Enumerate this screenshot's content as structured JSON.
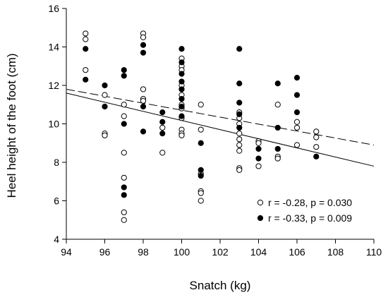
{
  "chart_data": {
    "type": "scatter",
    "title": "",
    "xlabel": "Snatch (kg)",
    "ylabel": "Heel height of the foot (cm)",
    "xlim": [
      94,
      110
    ],
    "ylim": [
      4,
      16
    ],
    "x_ticks": [
      94,
      96,
      98,
      100,
      102,
      104,
      106,
      108,
      110
    ],
    "y_ticks": [
      4,
      6,
      8,
      10,
      12,
      14,
      16
    ],
    "grid": false,
    "legend_position": "bottom-right",
    "series": [
      {
        "name": "r = -0.28,  p = 0.030",
        "marker": "open-circle",
        "line_style": "dashed",
        "regression": {
          "x": [
            94,
            110
          ],
          "y": [
            11.8,
            8.9
          ]
        },
        "points": [
          [
            95,
            14.7
          ],
          [
            95,
            14.4
          ],
          [
            95,
            12.8
          ],
          [
            96,
            11.5
          ],
          [
            96,
            9.5
          ],
          [
            96,
            9.4
          ],
          [
            97,
            11.0
          ],
          [
            97,
            10.4
          ],
          [
            97,
            8.5
          ],
          [
            97,
            7.2
          ],
          [
            97,
            5.4
          ],
          [
            97,
            5.0
          ],
          [
            98,
            14.7
          ],
          [
            98,
            14.5
          ],
          [
            98,
            11.8
          ],
          [
            98,
            11.3
          ],
          [
            98,
            11.2
          ],
          [
            99,
            9.8
          ],
          [
            99,
            8.5
          ],
          [
            100,
            13.4
          ],
          [
            100,
            13.0
          ],
          [
            100,
            12.8
          ],
          [
            100,
            12.0
          ],
          [
            100,
            11.5
          ],
          [
            100,
            11.0
          ],
          [
            100,
            10.8
          ],
          [
            100,
            10.3
          ],
          [
            100,
            9.7
          ],
          [
            100,
            9.5
          ],
          [
            100,
            9.4
          ],
          [
            101,
            11.0
          ],
          [
            101,
            9.7
          ],
          [
            101,
            7.4
          ],
          [
            101,
            6.5
          ],
          [
            101,
            6.4
          ],
          [
            101,
            6.0
          ],
          [
            103,
            10.6
          ],
          [
            103,
            10.3
          ],
          [
            103,
            10.0
          ],
          [
            103,
            9.5
          ],
          [
            103,
            9.2
          ],
          [
            103,
            8.9
          ],
          [
            103,
            8.6
          ],
          [
            103,
            7.7
          ],
          [
            103,
            7.6
          ],
          [
            104,
            9.1
          ],
          [
            104,
            9.0
          ],
          [
            104,
            7.8
          ],
          [
            105,
            11.0
          ],
          [
            105,
            8.3
          ],
          [
            105,
            8.2
          ],
          [
            106,
            10.1
          ],
          [
            106,
            9.8
          ],
          [
            106,
            8.9
          ],
          [
            107,
            9.6
          ],
          [
            107,
            9.3
          ],
          [
            107,
            8.8
          ]
        ]
      },
      {
        "name": "r = -0.33,  p = 0.009",
        "marker": "filled-circle",
        "line_style": "solid",
        "regression": {
          "x": [
            94,
            110
          ],
          "y": [
            11.6,
            7.8
          ]
        },
        "points": [
          [
            95,
            13.9
          ],
          [
            95,
            12.3
          ],
          [
            96,
            12.0
          ],
          [
            96,
            10.9
          ],
          [
            97,
            12.8
          ],
          [
            97,
            12.5
          ],
          [
            97,
            10.0
          ],
          [
            97,
            6.7
          ],
          [
            97,
            6.3
          ],
          [
            98,
            14.1
          ],
          [
            98,
            13.7
          ],
          [
            98,
            10.9
          ],
          [
            98,
            9.6
          ],
          [
            99,
            10.6
          ],
          [
            99,
            10.1
          ],
          [
            99,
            9.5
          ],
          [
            100,
            13.9
          ],
          [
            100,
            13.2
          ],
          [
            100,
            12.6
          ],
          [
            100,
            12.2
          ],
          [
            100,
            11.8
          ],
          [
            100,
            11.3
          ],
          [
            100,
            10.9
          ],
          [
            100,
            10.4
          ],
          [
            101,
            9.0
          ],
          [
            101,
            7.6
          ],
          [
            101,
            7.3
          ],
          [
            103,
            13.9
          ],
          [
            103,
            12.1
          ],
          [
            103,
            11.1
          ],
          [
            103,
            10.5
          ],
          [
            103,
            9.8
          ],
          [
            104,
            8.7
          ],
          [
            104,
            8.2
          ],
          [
            105,
            12.1
          ],
          [
            105,
            9.8
          ],
          [
            105,
            8.7
          ],
          [
            106,
            12.4
          ],
          [
            106,
            11.5
          ],
          [
            106,
            10.6
          ],
          [
            107,
            8.3
          ]
        ]
      }
    ]
  }
}
